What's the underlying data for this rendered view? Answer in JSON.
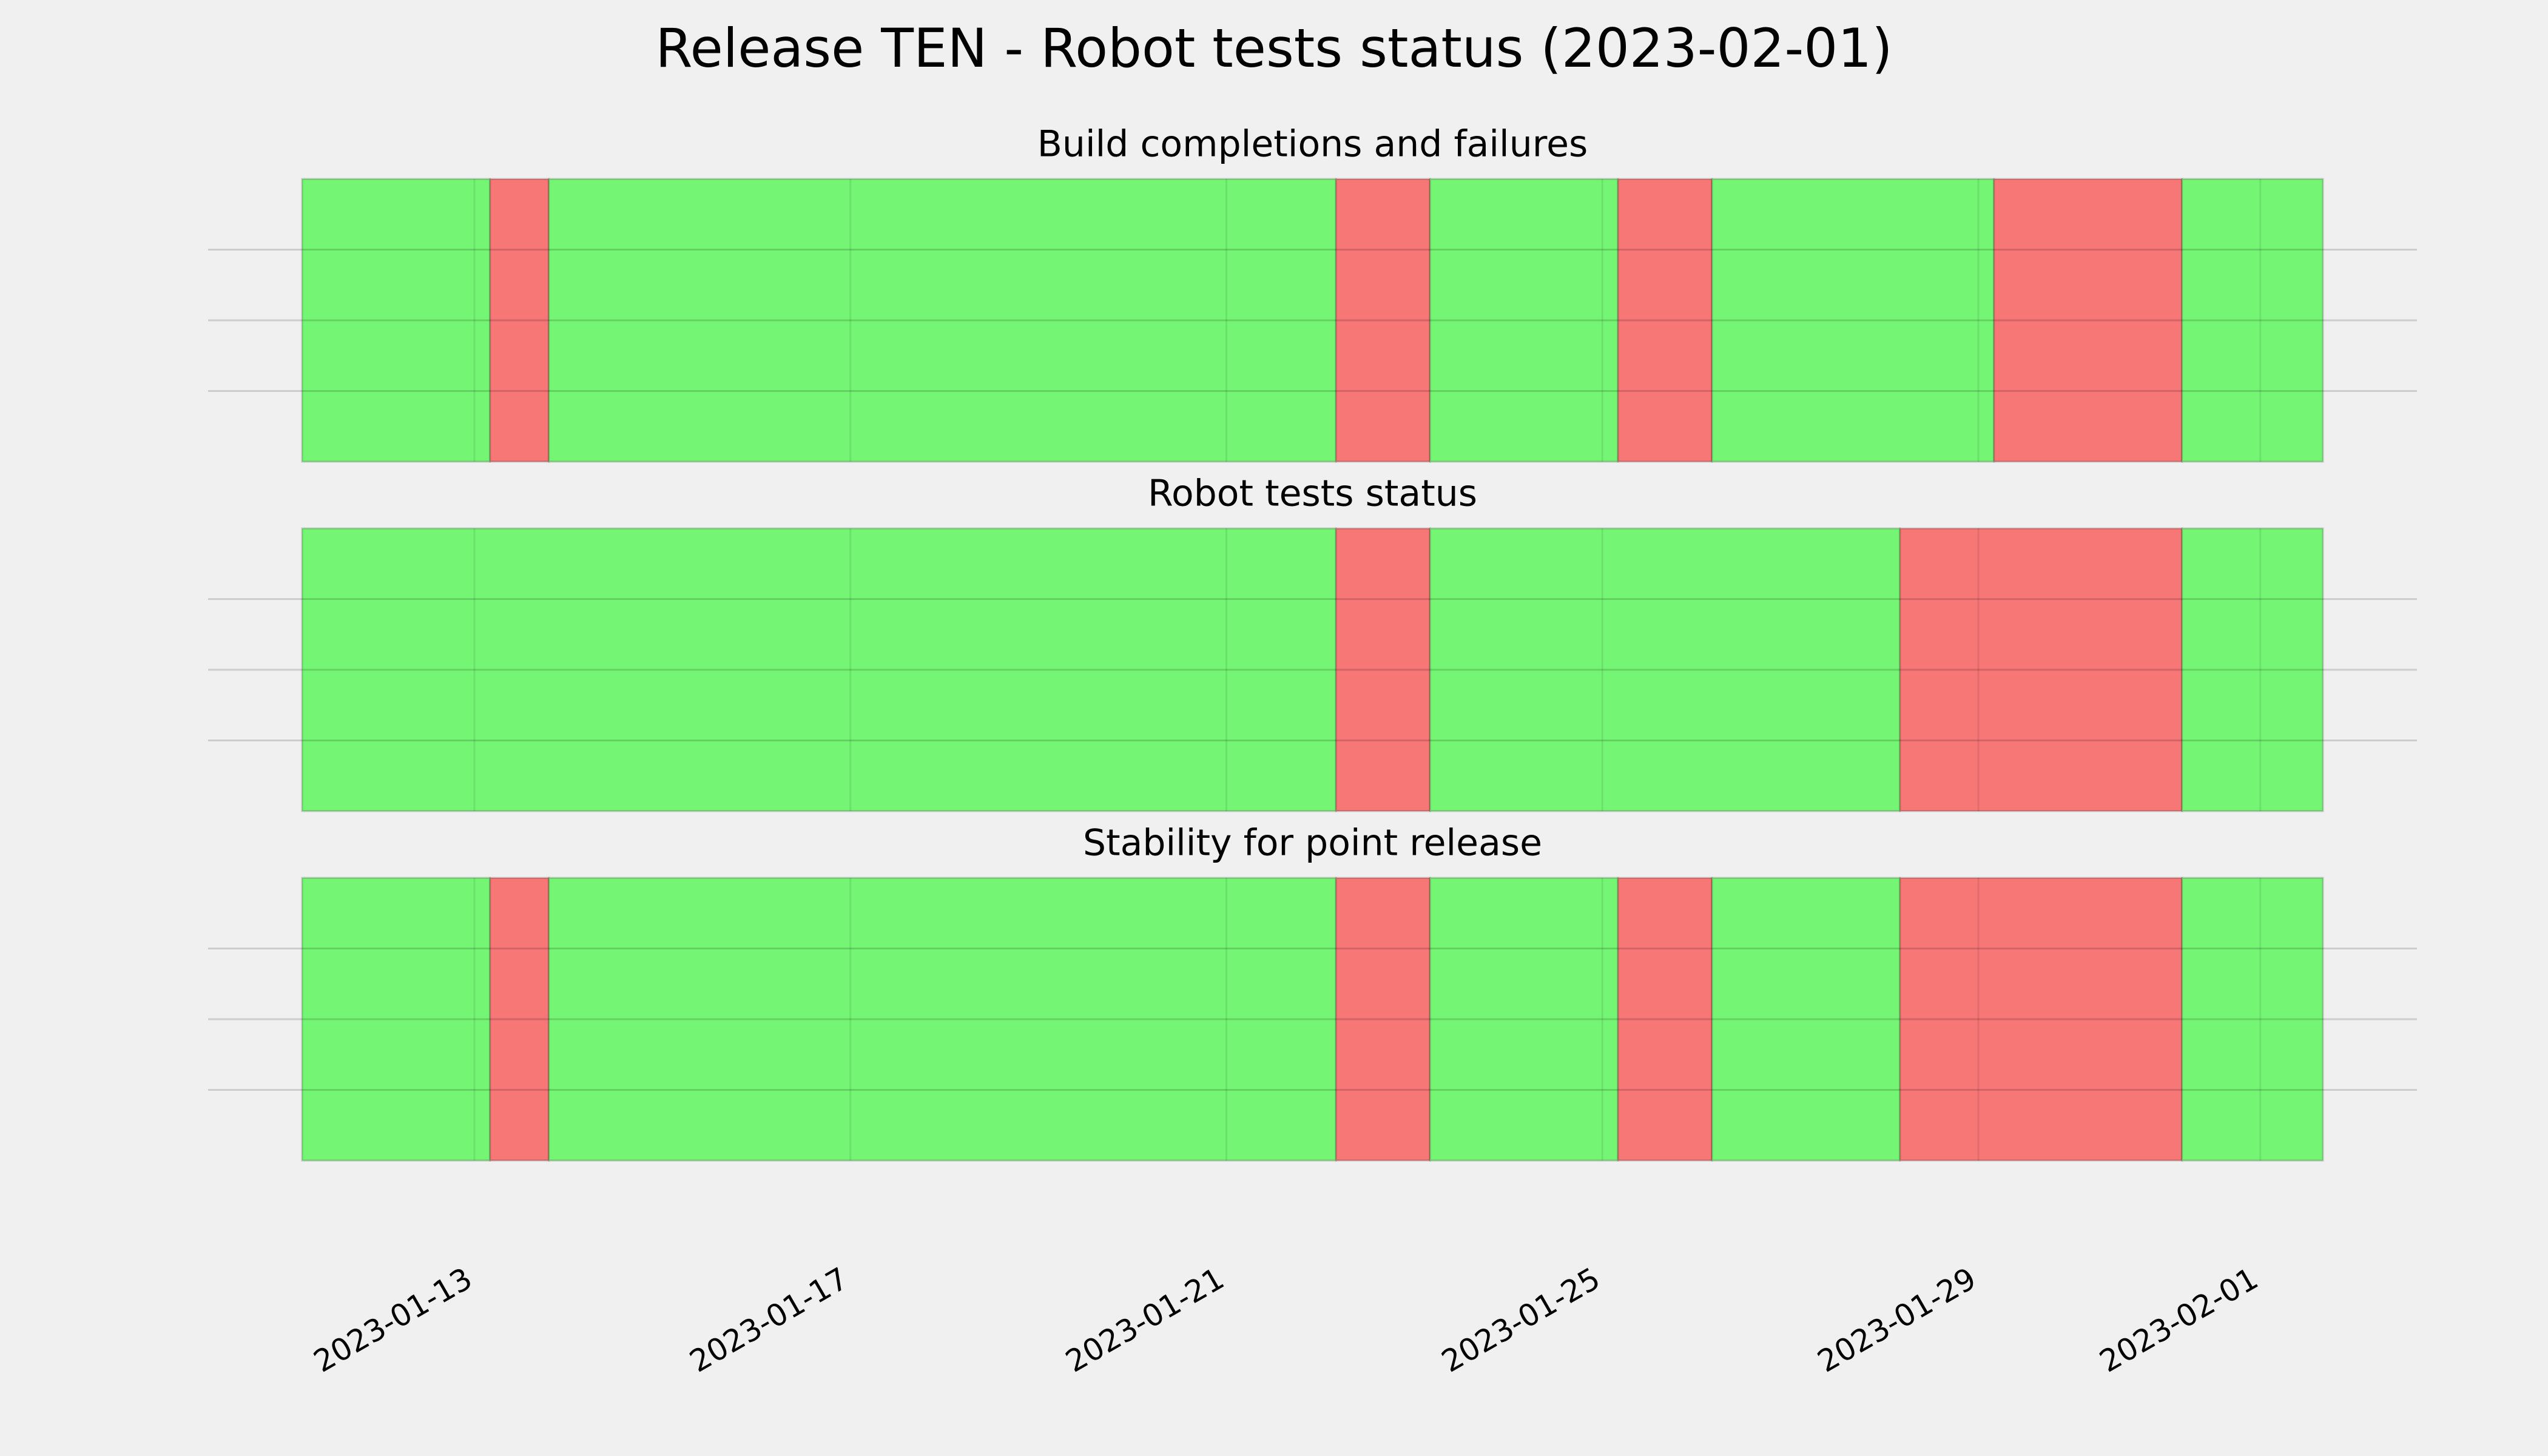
{
  "title": "Release TEN - Robot tests status (2023-02-01)",
  "chart_data": [
    {
      "type": "status",
      "title": "Build completions and failures",
      "bins": [
        "2023-01-11T04:00",
        "2023-01-13T04:00",
        "2023-01-13T19:00",
        "2023-01-22T04:00",
        "2023-01-23T04:00",
        "2023-01-25T04:00",
        "2023-01-26T04:00",
        "2023-01-29T04:00",
        "2023-01-31T04:00",
        "2023-02-01T16:00"
      ],
      "colors": [
        "#74f674",
        "#f77676",
        "#74f674",
        "#f77676",
        "#74f674",
        "#f77676",
        "#74f674",
        "#f77676",
        "#74f674"
      ],
      "xlim": [
        "2023-01-10T04:00",
        "2023-02-02T16:00"
      ],
      "xticks": [
        "2023-01-13",
        "2023-01-17",
        "2023-01-21",
        "2023-01-25",
        "2023-01-29",
        "2023-02-01"
      ],
      "ylim": [
        0,
        1
      ],
      "yticks": [
        0.25,
        0.5,
        0.75
      ],
      "grid": true
    },
    {
      "type": "status",
      "title": "Robot tests status",
      "bins": [
        "2023-01-11T04:00",
        "2023-01-22T04:00",
        "2023-01-23T04:00",
        "2023-01-28T04:00",
        "2023-01-31T04:00",
        "2023-02-01T16:00"
      ],
      "colors": [
        "#74f674",
        "#f77676",
        "#74f674",
        "#f77676",
        "#74f674"
      ],
      "xlim": [
        "2023-01-10T04:00",
        "2023-02-02T16:00"
      ],
      "xticks": [
        "2023-01-13",
        "2023-01-17",
        "2023-01-21",
        "2023-01-25",
        "2023-01-29",
        "2023-02-01"
      ],
      "ylim": [
        0,
        1
      ],
      "yticks": [
        0.25,
        0.5,
        0.75
      ],
      "grid": true
    },
    {
      "type": "status",
      "title": "Stability for point release",
      "bins": [
        "2023-01-11T04:00",
        "2023-01-13T04:00",
        "2023-01-13T19:00",
        "2023-01-22T04:00",
        "2023-01-23T04:00",
        "2023-01-25T04:00",
        "2023-01-26T04:00",
        "2023-01-28T04:00",
        "2023-01-31T04:00",
        "2023-02-01T16:00"
      ],
      "colors": [
        "#74f674",
        "#f77676",
        "#74f674",
        "#f77676",
        "#74f674",
        "#f77676",
        "#74f674",
        "#f77676",
        "#74f674"
      ],
      "xlim": [
        "2023-01-10T04:00",
        "2023-02-02T16:00"
      ],
      "xticks": [
        "2023-01-13",
        "2023-01-17",
        "2023-01-21",
        "2023-01-25",
        "2023-01-29",
        "2023-02-01"
      ],
      "ylim": [
        0,
        1
      ],
      "yticks": [
        0.25,
        0.5,
        0.75
      ],
      "grid": true,
      "show_xtick_labels": true
    }
  ]
}
